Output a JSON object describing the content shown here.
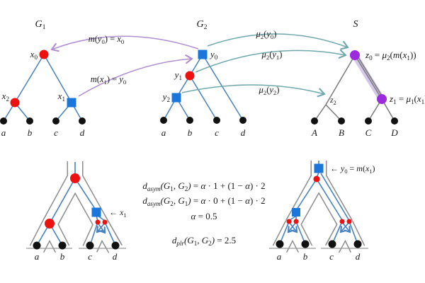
{
  "figure": {
    "description": "Tree reconciliation figure with gene trees G1, G2, species tree S, mappings m and mu, and distance equations",
    "colors": {
      "gene_edge_blue": "#4681BF",
      "node_blue_square": "#1B76DB",
      "node_red": "#EE1111",
      "node_purple": "#9D2BDE",
      "highlight_band": "#B49BD8",
      "purple_arrow": "#AF8FD0",
      "teal_arrow": "#6FA8AC",
      "species_edge_gray": "#7A7A7A",
      "pipe_gray": "#8C8C8C",
      "leaf_black": "#111111"
    }
  },
  "labels": {
    "g1_title": [
      {
        "t": "G"
      },
      {
        "d": "1"
      }
    ],
    "g2_title": [
      {
        "t": "G"
      },
      {
        "d": "2"
      }
    ],
    "s_title": [
      {
        "t": "S"
      }
    ],
    "x0": [
      {
        "t": "x"
      },
      {
        "d": "0"
      }
    ],
    "x1": [
      {
        "t": "x"
      },
      {
        "d": "1"
      }
    ],
    "x2": [
      {
        "t": "x"
      },
      {
        "d": "2"
      }
    ],
    "y0": [
      {
        "t": "y"
      },
      {
        "d": "0"
      }
    ],
    "y1": [
      {
        "t": "y"
      },
      {
        "d": "1"
      }
    ],
    "y2": [
      {
        "t": "y"
      },
      {
        "d": "2"
      }
    ],
    "z0_eq": [
      {
        "t": "z"
      },
      {
        "d": "0"
      },
      {
        "u": " = "
      },
      {
        "t": "μ"
      },
      {
        "d": "2"
      },
      {
        "u": "("
      },
      {
        "t": "m"
      },
      {
        "u": "("
      },
      {
        "t": "x"
      },
      {
        "d": "1"
      },
      {
        "u": "))"
      }
    ],
    "z1_eq": [
      {
        "t": "z"
      },
      {
        "d": "1"
      },
      {
        "u": " = "
      },
      {
        "t": "μ"
      },
      {
        "d": "1"
      },
      {
        "u": "("
      },
      {
        "t": "x"
      },
      {
        "d": "1"
      },
      {
        "u": ")"
      }
    ],
    "z2": [
      {
        "t": "z"
      },
      {
        "d": "2"
      }
    ],
    "map_m_y0": [
      {
        "t": "m"
      },
      {
        "u": "("
      },
      {
        "t": "y"
      },
      {
        "d": "0"
      },
      {
        "u": ") = "
      },
      {
        "t": "x"
      },
      {
        "d": "0"
      }
    ],
    "map_m_x1": [
      {
        "t": "m"
      },
      {
        "u": "("
      },
      {
        "t": "x"
      },
      {
        "d": "1"
      },
      {
        "u": ") = "
      },
      {
        "t": "y"
      },
      {
        "d": "0"
      }
    ],
    "mu_y0": [
      {
        "t": "μ"
      },
      {
        "d": "2"
      },
      {
        "u": "("
      },
      {
        "t": "y"
      },
      {
        "d": "0"
      },
      {
        "u": ")"
      }
    ],
    "mu_y1": [
      {
        "t": "μ"
      },
      {
        "d": "2"
      },
      {
        "u": "("
      },
      {
        "t": "y"
      },
      {
        "d": "1"
      },
      {
        "u": ")"
      }
    ],
    "mu_y2": [
      {
        "t": "μ"
      },
      {
        "d": "2"
      },
      {
        "u": "("
      },
      {
        "t": "y"
      },
      {
        "d": "2"
      },
      {
        "u": ")"
      }
    ],
    "x1_pointer": [
      {
        "u": "← "
      },
      {
        "t": "x"
      },
      {
        "d": "1"
      }
    ],
    "y0_pointer": [
      {
        "u": "← "
      },
      {
        "t": "y"
      },
      {
        "d": "0"
      },
      {
        "u": " = "
      },
      {
        "t": "m"
      },
      {
        "u": "("
      },
      {
        "t": "x"
      },
      {
        "d": "1"
      },
      {
        "u": ")"
      }
    ],
    "leaf_a": [
      {
        "t": "a"
      }
    ],
    "leaf_b": [
      {
        "t": "b"
      }
    ],
    "leaf_c": [
      {
        "t": "c"
      }
    ],
    "leaf_d": [
      {
        "t": "d"
      }
    ],
    "leaf_A": [
      {
        "t": "A"
      }
    ],
    "leaf_B": [
      {
        "t": "B"
      }
    ],
    "leaf_C": [
      {
        "t": "C"
      }
    ],
    "leaf_D": [
      {
        "t": "D"
      }
    ]
  },
  "equations": {
    "line1": [
      {
        "t": "d"
      },
      {
        "s": "asym"
      },
      {
        "t": "(G"
      },
      {
        "d": "1"
      },
      {
        "t": ", G"
      },
      {
        "d": "2"
      },
      {
        "t": ")"
      },
      {
        "u": " = "
      },
      {
        "t": "α"
      },
      {
        "u": " · 1 + (1 − "
      },
      {
        "t": "α"
      },
      {
        "u": ") · 2"
      }
    ],
    "line2": [
      {
        "t": "d"
      },
      {
        "s": "asym"
      },
      {
        "t": "(G"
      },
      {
        "d": "2"
      },
      {
        "t": ", G"
      },
      {
        "d": "1"
      },
      {
        "t": ")"
      },
      {
        "u": " = "
      },
      {
        "t": "α"
      },
      {
        "u": " · 0 + (1 − "
      },
      {
        "t": "α"
      },
      {
        "u": ") · 2"
      }
    ],
    "line3": [
      {
        "t": "α"
      },
      {
        "u": " = 0.5"
      }
    ],
    "line4": [
      {
        "t": "d"
      },
      {
        "s": "plr"
      },
      {
        "t": "(G"
      },
      {
        "d": "1"
      },
      {
        "t": ", G"
      },
      {
        "d": "2"
      },
      {
        "t": ")"
      },
      {
        "u": " = 2.5"
      }
    ]
  }
}
